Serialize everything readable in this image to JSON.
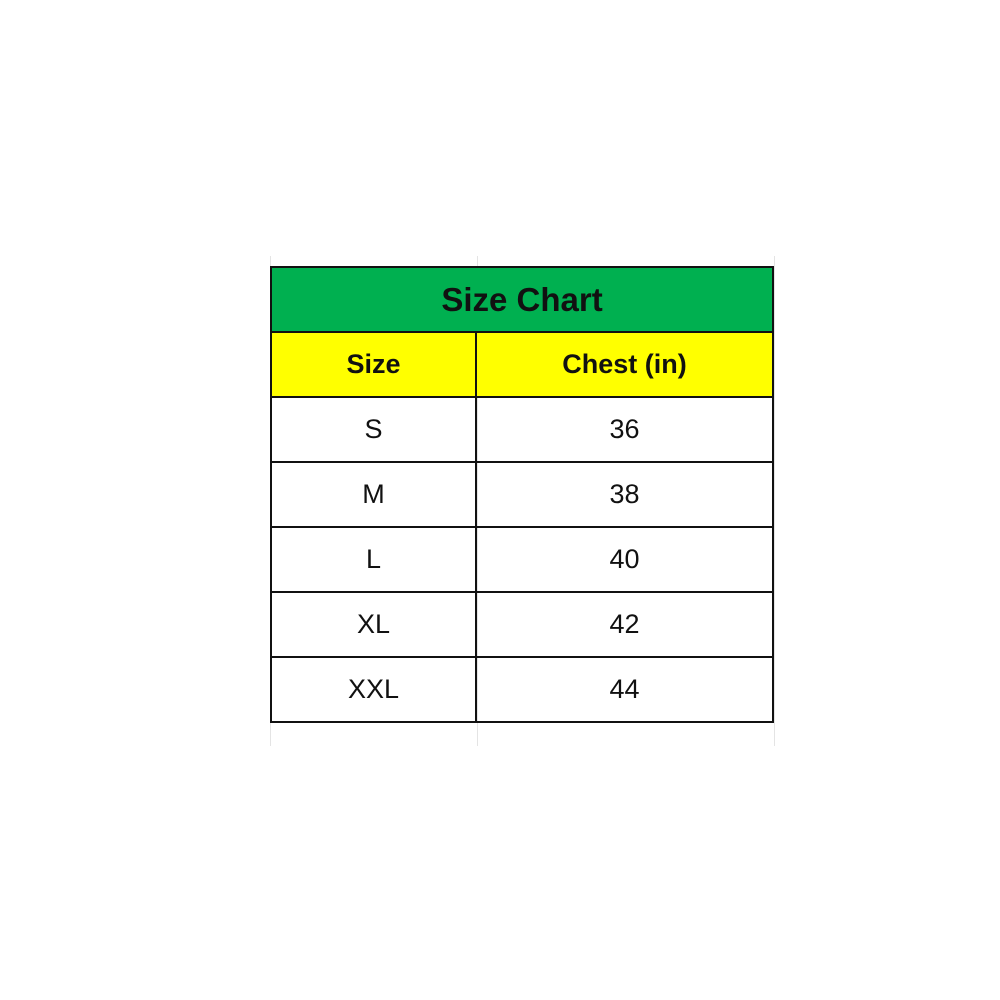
{
  "table": {
    "title": "Size Chart",
    "headers": [
      "Size",
      "Chest (in)"
    ],
    "rows": [
      [
        "S",
        "36"
      ],
      [
        "M",
        "38"
      ],
      [
        "L",
        "40"
      ],
      [
        "XL",
        "42"
      ],
      [
        "XXL",
        "44"
      ]
    ],
    "colors": {
      "title_bg": "#00b050",
      "header_bg": "#ffff00"
    }
  }
}
